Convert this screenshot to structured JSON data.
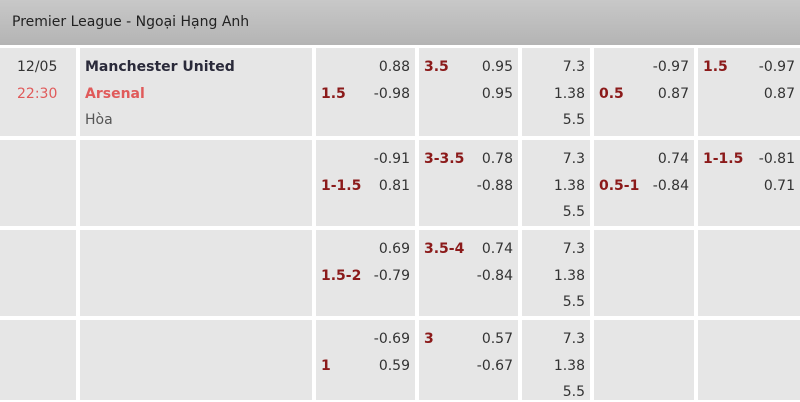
{
  "league": "Premier League - Ngoại Hạng Anh",
  "match": {
    "date": "12/05",
    "time": "22:30",
    "home": "Manchester United",
    "away": "Arsenal",
    "draw": "Hòa"
  },
  "colors": {
    "line": "#8b1a1a",
    "time": "#e05a5a",
    "away": "#e05a5a"
  },
  "rows": [
    {
      "hdp": {
        "line": "1.5",
        "home": "0.88",
        "away": "-0.98"
      },
      "ou": {
        "line": "3.5",
        "over": "0.95",
        "under": "0.95"
      },
      "x12": [
        "7.3",
        "1.38",
        "5.5"
      ],
      "hhdp": {
        "line": "0.5",
        "home": "-0.97",
        "away": "0.87"
      },
      "hou": {
        "line": "1.5",
        "over": "-0.97",
        "under": "0.87"
      }
    },
    {
      "hdp": {
        "line": "1-1.5",
        "home": "-0.91",
        "away": "0.81"
      },
      "ou": {
        "line": "3-3.5",
        "over": "0.78",
        "under": "-0.88"
      },
      "x12": [
        "7.3",
        "1.38",
        "5.5"
      ],
      "hhdp": {
        "line": "0.5-1",
        "home": "0.74",
        "away": "-0.84"
      },
      "hou": {
        "line": "1-1.5",
        "over": "-0.81",
        "under": "0.71"
      }
    },
    {
      "hdp": {
        "line": "1.5-2",
        "home": "0.69",
        "away": "-0.79"
      },
      "ou": {
        "line": "3.5-4",
        "over": "0.74",
        "under": "-0.84"
      },
      "x12": [
        "7.3",
        "1.38",
        "5.5"
      ]
    },
    {
      "hdp": {
        "line": "1",
        "home": "-0.69",
        "away": "0.59"
      },
      "ou": {
        "line": "3",
        "over": "0.57",
        "under": "-0.67"
      },
      "x12": [
        "7.3",
        "1.38",
        "5.5"
      ]
    }
  ]
}
